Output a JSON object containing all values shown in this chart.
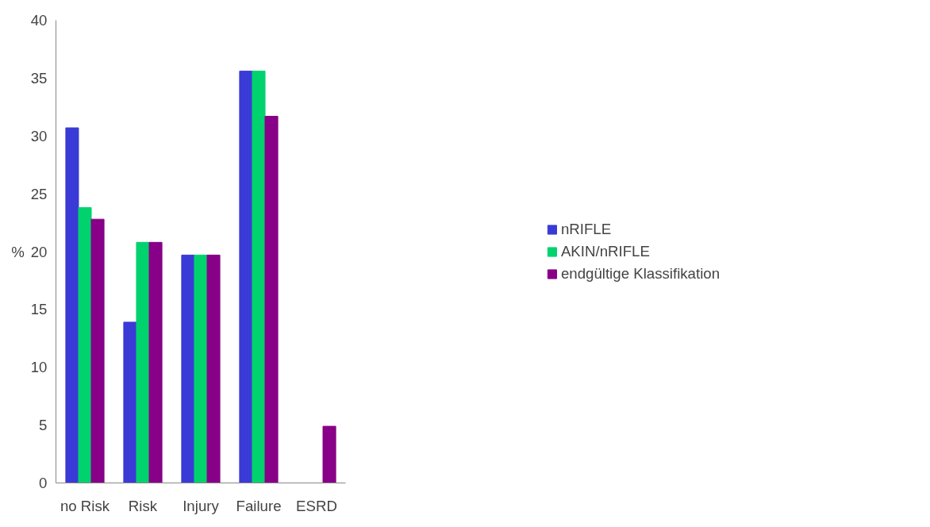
{
  "chart_data": {
    "type": "bar",
    "ylabel": "%",
    "categories": [
      "no Risk",
      "Risk",
      "Injury",
      "Failure",
      "ESRD"
    ],
    "series": [
      {
        "name": "nRIFLE",
        "color": "#3a3ad6",
        "values": [
          30.7,
          13.9,
          19.7,
          35.6,
          0
        ]
      },
      {
        "name": "AKIN/nRIFLE",
        "color": "#00d26e",
        "values": [
          23.8,
          20.8,
          19.7,
          35.6,
          0
        ]
      },
      {
        "name": "endgültige Klassifikation",
        "color": "#870087",
        "values": [
          22.8,
          20.8,
          19.7,
          31.7,
          4.9
        ]
      }
    ],
    "ylim": [
      0,
      40
    ],
    "yticks": [
      0,
      5,
      10,
      15,
      20,
      25,
      30,
      35,
      40
    ],
    "grid": false,
    "legend": "right"
  }
}
